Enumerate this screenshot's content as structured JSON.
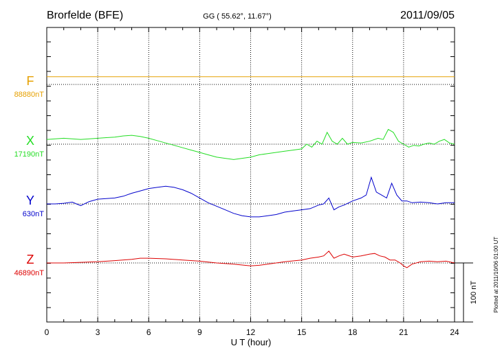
{
  "chart_data": {
    "type": "line",
    "station": "Brorfelde (BFE)",
    "coords": "GG ( 55.62°,  11.67°)",
    "date": "2011/09/05",
    "xlabel": "U T (hour)",
    "xlim": [
      0,
      24
    ],
    "xticks": [
      "0",
      "3",
      "6",
      "9",
      "12",
      "15",
      "18",
      "21",
      "24"
    ],
    "scale_label": "100 nT",
    "scale_nT": 100,
    "plotted_note": "Plotted at 2011/10/06 01:00 UT",
    "grid": true,
    "series": [
      {
        "name": "F",
        "baseline": "88880nT",
        "color": "#e6a000",
        "x": [
          0,
          24
        ],
        "y": [
          13,
          13
        ]
      },
      {
        "name": "X",
        "baseline": "17190nT",
        "color": "#22dd22",
        "x": [
          0,
          0.5,
          1,
          1.5,
          2,
          2.5,
          3,
          3.5,
          4,
          4.5,
          5,
          5.5,
          6,
          6.5,
          7,
          7.5,
          8,
          8.5,
          9,
          9.5,
          10,
          10.5,
          11,
          11.5,
          12,
          12.5,
          13,
          13.5,
          14,
          14.5,
          15,
          15.3,
          15.6,
          15.9,
          16.2,
          16.5,
          16.8,
          17.1,
          17.4,
          17.7,
          18,
          18.5,
          19,
          19.5,
          19.8,
          20.1,
          20.4,
          20.7,
          21,
          21.3,
          21.6,
          21.9,
          22.2,
          22.5,
          22.8,
          23.1,
          23.4,
          23.7,
          24
        ],
        "y": [
          8,
          9,
          10,
          9,
          8,
          9,
          10,
          11,
          12,
          14,
          15,
          13,
          10,
          6,
          2,
          -2,
          -6,
          -10,
          -14,
          -18,
          -22,
          -24,
          -26,
          -24,
          -22,
          -18,
          -16,
          -14,
          -12,
          -10,
          -8,
          0,
          -5,
          5,
          0,
          20,
          5,
          0,
          10,
          0,
          3,
          2,
          5,
          10,
          8,
          25,
          20,
          5,
          0,
          -5,
          -2,
          -3,
          0,
          2,
          0,
          5,
          8,
          2,
          0
        ]
      },
      {
        "name": "Y",
        "baseline": "630nT",
        "color": "#0000cc",
        "x": [
          0,
          0.5,
          1,
          1.5,
          2,
          2.5,
          3,
          3.5,
          4,
          4.5,
          5,
          5.5,
          6,
          6.5,
          7,
          7.5,
          8,
          8.5,
          9,
          9.5,
          10,
          10.5,
          11,
          11.5,
          12,
          12.5,
          13,
          13.5,
          14,
          14.5,
          15,
          15.5,
          16,
          16.3,
          16.6,
          16.9,
          17.2,
          17.5,
          18,
          18.5,
          18.8,
          19.1,
          19.4,
          19.7,
          20,
          20.3,
          20.6,
          20.9,
          21.2,
          21.5,
          22,
          22.5,
          23,
          23.5,
          24
        ],
        "y": [
          0,
          0,
          1,
          3,
          -3,
          4,
          8,
          9,
          10,
          13,
          18,
          22,
          26,
          28,
          30,
          28,
          24,
          18,
          10,
          2,
          -4,
          -10,
          -16,
          -20,
          -22,
          -22,
          -20,
          -18,
          -14,
          -12,
          -10,
          -8,
          -2,
          0,
          10,
          -10,
          -5,
          -2,
          5,
          10,
          15,
          45,
          20,
          15,
          10,
          35,
          15,
          5,
          5,
          2,
          3,
          2,
          0,
          2,
          2
        ]
      },
      {
        "name": "Z",
        "baseline": "46890nT",
        "color": "#dd0000",
        "x": [
          0,
          1,
          2,
          3,
          4,
          5,
          5.5,
          6,
          7,
          8,
          9,
          10,
          11,
          12,
          12.5,
          13,
          14,
          15,
          15.5,
          16,
          16.3,
          16.6,
          16.9,
          17.2,
          17.5,
          18,
          18.5,
          19,
          19.3,
          19.6,
          19.9,
          20.2,
          20.5,
          20.8,
          21,
          21.2,
          21.5,
          22,
          22.5,
          23,
          23.5,
          24
        ],
        "y": [
          0,
          0,
          1,
          2,
          4,
          6,
          8,
          8,
          7,
          5,
          3,
          0,
          -2,
          -5,
          -4,
          -2,
          2,
          5,
          8,
          10,
          12,
          20,
          8,
          12,
          15,
          10,
          12,
          15,
          16,
          12,
          10,
          5,
          5,
          0,
          -5,
          -8,
          -2,
          2,
          3,
          2,
          3,
          0
        ]
      }
    ]
  }
}
